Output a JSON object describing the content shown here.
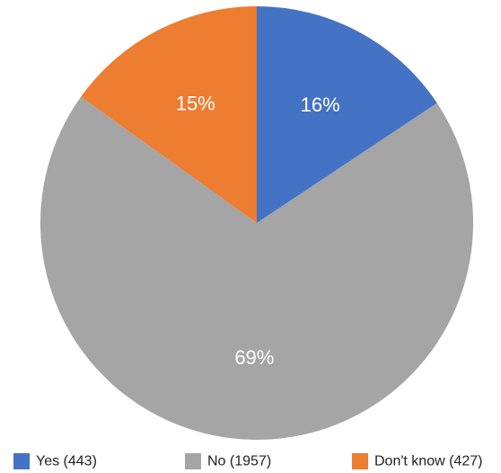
{
  "chart_data": {
    "type": "pie",
    "title": "",
    "start_angle_deg": 0,
    "direction": "clockwise",
    "legend_position": "bottom",
    "slices": [
      {
        "label": "Yes (443)",
        "value": 443,
        "percent_label": "16%",
        "color": "#4472C4"
      },
      {
        "label": "No (1957)",
        "value": 1957,
        "percent_label": "69%",
        "color": "#A5A5A5"
      },
      {
        "label": "Don't know (427)",
        "value": 427,
        "percent_label": "15%",
        "color": "#ED7D31"
      }
    ]
  }
}
